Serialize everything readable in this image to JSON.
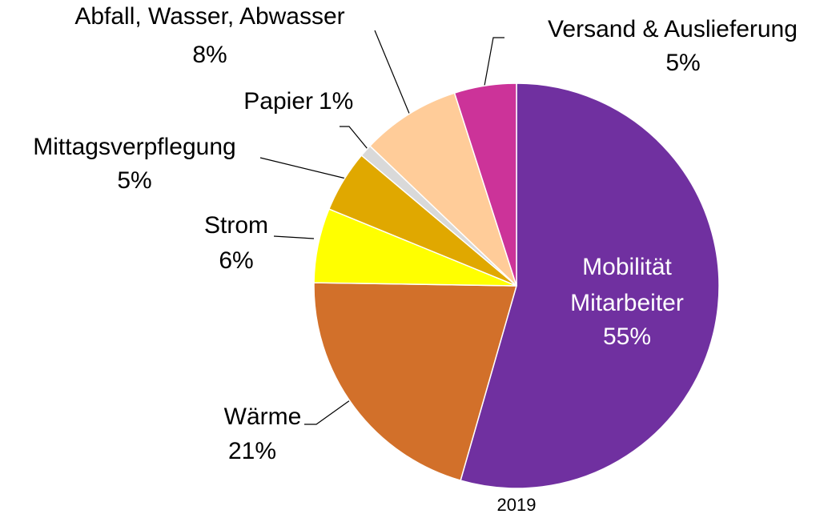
{
  "chart_data": {
    "type": "pie",
    "caption": "2019",
    "categories": [
      "Mobilität\nMitarbeiter",
      "Wärme",
      "Strom",
      "Mittagsverpflegung",
      "Papier",
      "Abfall, Wasser, Abwasser",
      "Versand & Auslieferung"
    ],
    "values": [
      55,
      21,
      6,
      5,
      1,
      8,
      5
    ],
    "value_labels": [
      "55%",
      "21%",
      "6%",
      "5%",
      "1%",
      "8%",
      "5%"
    ],
    "colors": [
      "#7030a0",
      "#d2702a",
      "#ffff00",
      "#e0a800",
      "#d9d9d9",
      "#ffcc99",
      "#cc3399"
    ]
  }
}
